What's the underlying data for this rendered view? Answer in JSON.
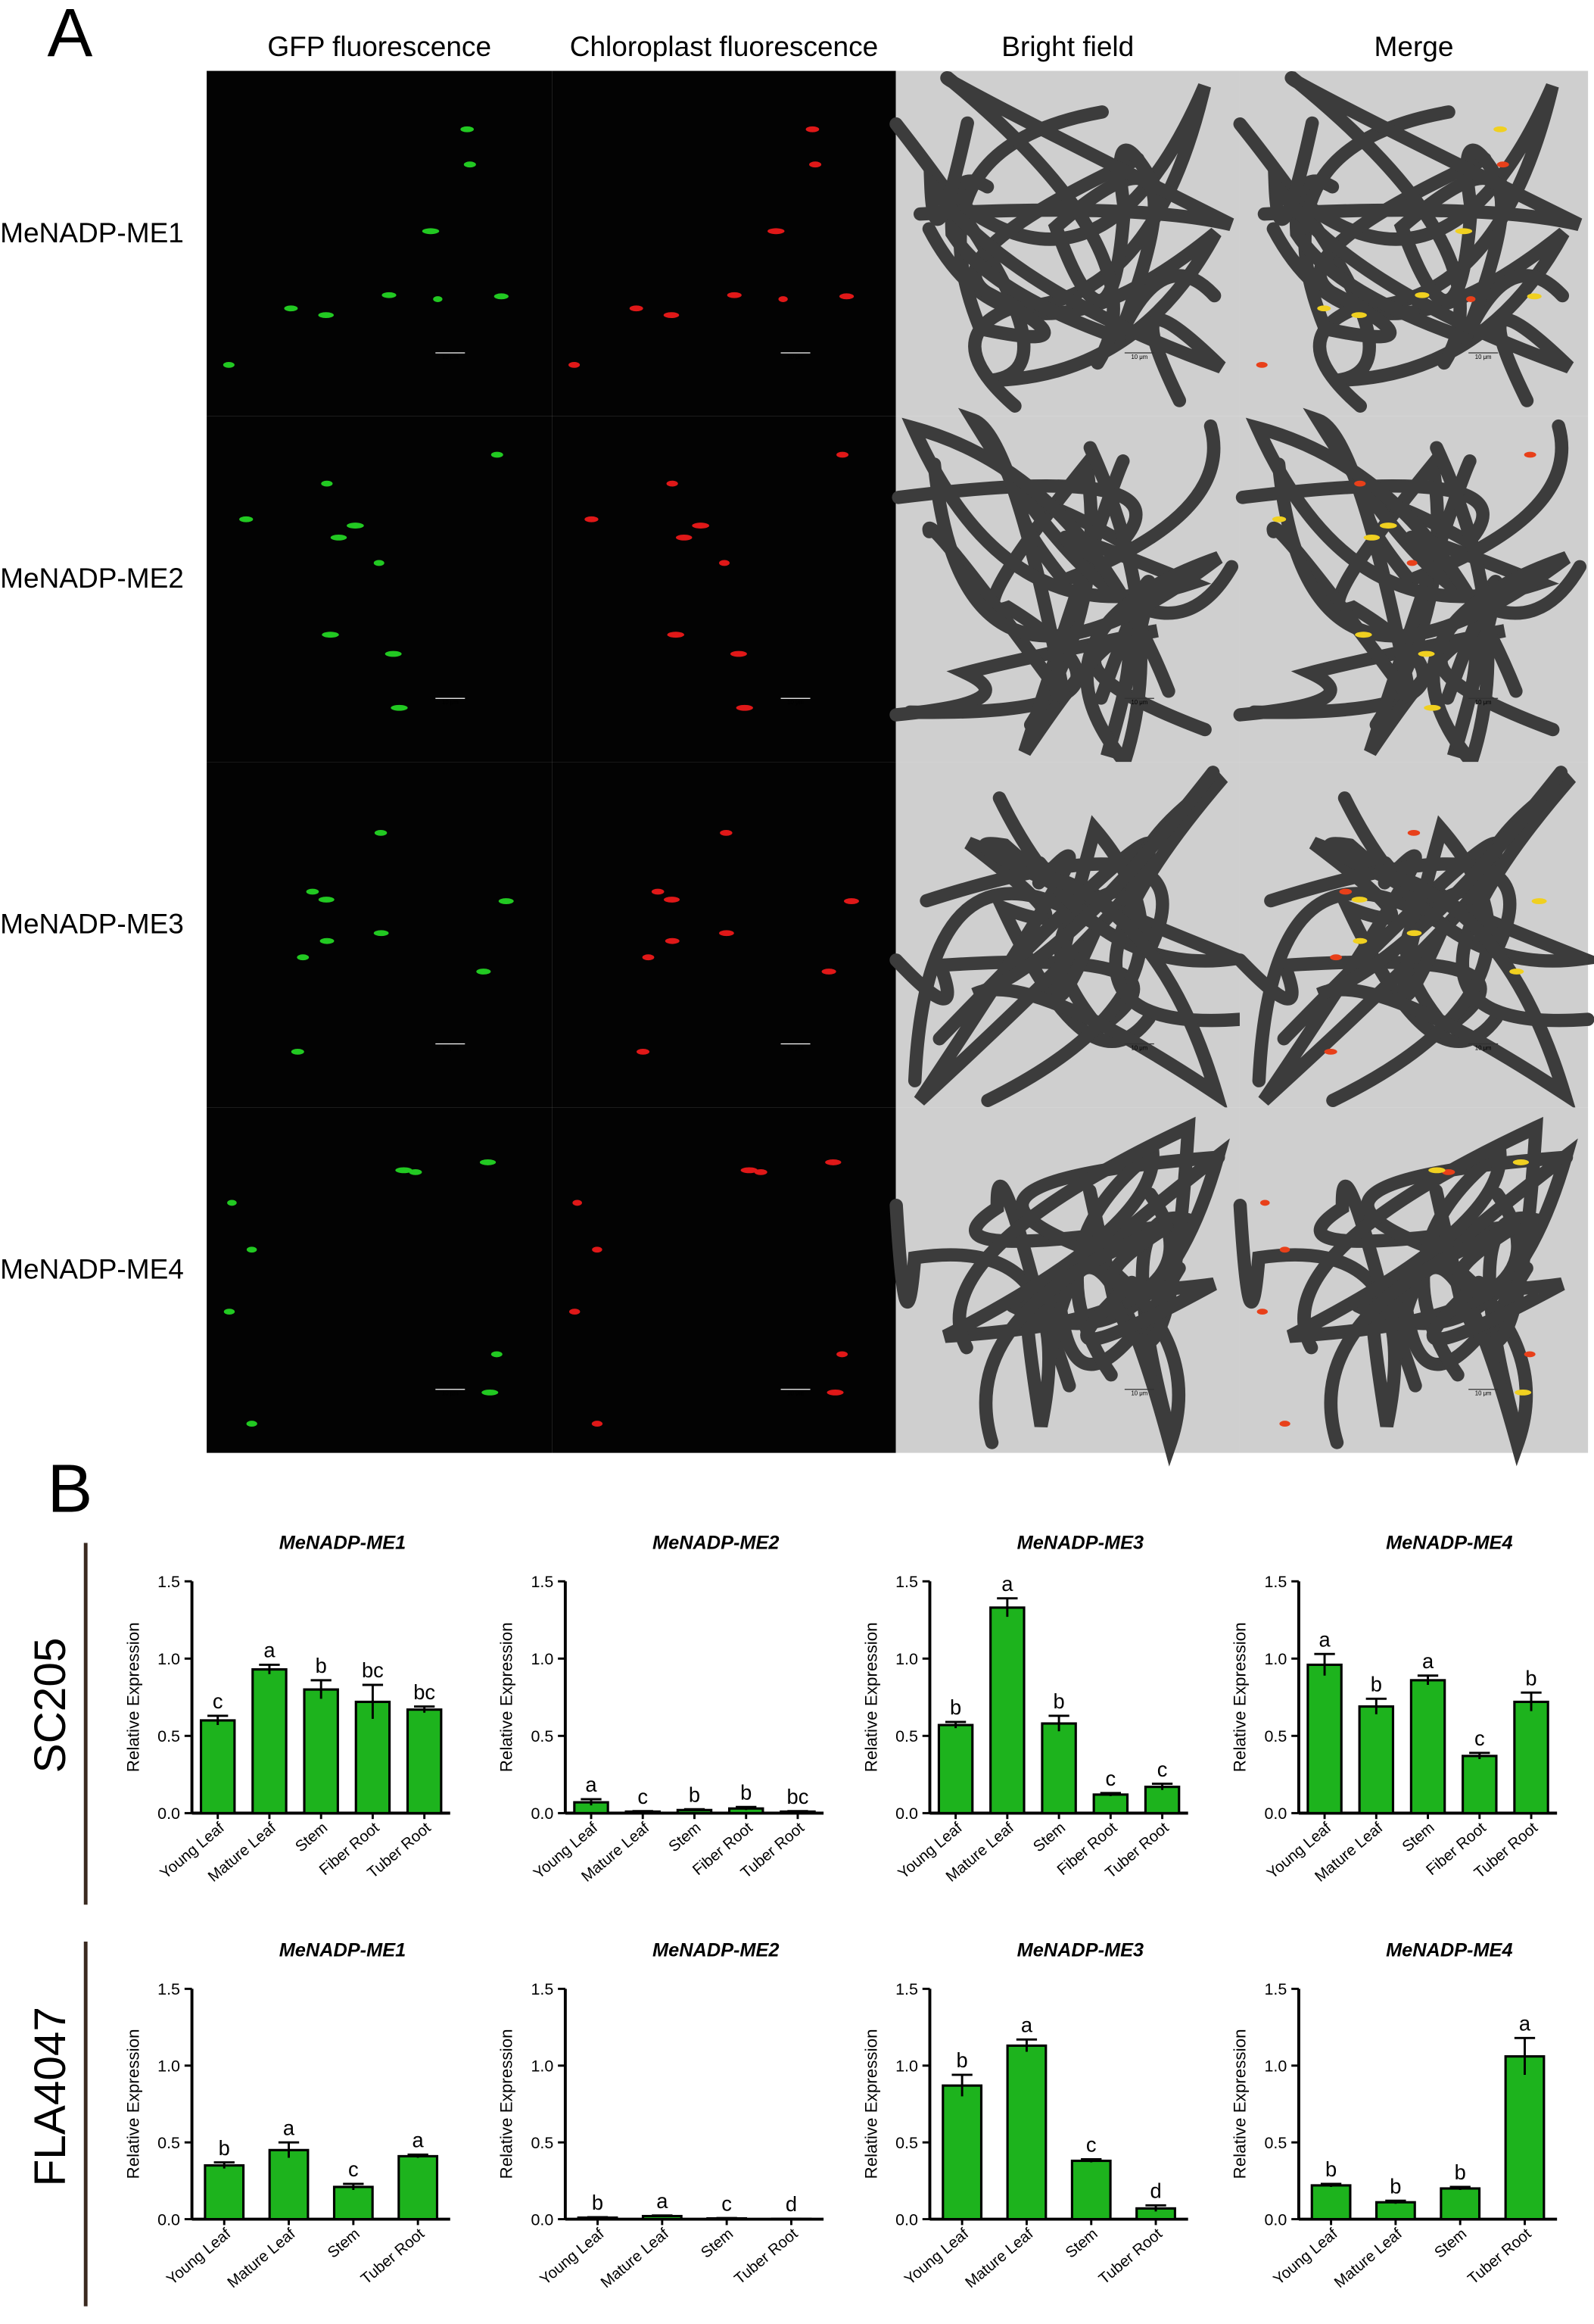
{
  "panel_a": {
    "label": "A",
    "columns": [
      "GFP fluorescence",
      "Chloroplast fluorescence",
      "Bright field",
      "Merge"
    ],
    "rows": [
      "MeNADP-ME1",
      "MeNADP-ME2",
      "MeNADP-ME3",
      "MeNADP-ME4"
    ],
    "scale_bar": "10 μm"
  },
  "panel_b": {
    "label": "B",
    "groups": [
      "SC205",
      "FLA4047"
    ]
  },
  "chart_data": [
    {
      "type": "bar",
      "title": "MeNADP-ME1",
      "ylabel": "Relative Expression",
      "categories": [
        "Young Leaf",
        "Mature Leaf",
        "Stem",
        "Fiber Root",
        "Tuber Root"
      ],
      "values": [
        0.6,
        0.93,
        0.8,
        0.72,
        0.67
      ],
      "errors": [
        0.03,
        0.03,
        0.06,
        0.11,
        0.02
      ],
      "letters": [
        "c",
        "a",
        "b",
        "bc",
        "bc"
      ],
      "color": "#1db31d",
      "ylim": [
        0,
        1.5
      ],
      "yticks": [
        {
          "value": 0,
          "label": "0.0"
        },
        0.5,
        {
          "value": 1,
          "label": "1.0"
        },
        1.5
      ]
    },
    {
      "type": "bar",
      "title": "MeNADP-ME2",
      "ylabel": "Relative Expression",
      "categories": [
        "Young Leaf",
        "Mature Leaf",
        "Stem",
        "Fiber Root",
        "Tuber Root"
      ],
      "values": [
        0.07,
        0.01,
        0.02,
        0.03,
        0.01
      ],
      "errors": [
        0.02,
        0.003,
        0.005,
        0.01,
        0.003
      ],
      "letters": [
        "a",
        "c",
        "b",
        "b",
        "bc"
      ],
      "color": "#1db31d",
      "ylim": [
        0,
        1.5
      ],
      "yticks": [
        {
          "value": 0,
          "label": "0.0"
        },
        0.5,
        {
          "value": 1,
          "label": "1.0"
        },
        1.5
      ]
    },
    {
      "type": "bar",
      "title": "MeNADP-ME3",
      "ylabel": "Relative Expression",
      "categories": [
        "Young Leaf",
        "Mature Leaf",
        "Stem",
        "Fiber Root",
        "Tuber Root"
      ],
      "values": [
        0.57,
        1.33,
        0.58,
        0.12,
        0.17
      ],
      "errors": [
        0.02,
        0.06,
        0.05,
        0.01,
        0.02
      ],
      "letters": [
        "b",
        "a",
        "b",
        "c",
        "c"
      ],
      "color": "#1db31d",
      "ylim": [
        0,
        1.5
      ],
      "yticks": [
        {
          "value": 0,
          "label": "0.0"
        },
        0.5,
        {
          "value": 1,
          "label": "1.0"
        },
        1.5
      ]
    },
    {
      "type": "bar",
      "title": "MeNADP-ME4",
      "ylabel": "Relative Expression",
      "categories": [
        "Young Leaf",
        "Mature Leaf",
        "Stem",
        "Fiber Root",
        "Tuber Root"
      ],
      "values": [
        0.96,
        0.69,
        0.86,
        0.37,
        0.72
      ],
      "errors": [
        0.07,
        0.05,
        0.03,
        0.02,
        0.06
      ],
      "letters": [
        "a",
        "b",
        "a",
        "c",
        "b"
      ],
      "color": "#1db31d",
      "ylim": [
        0,
        1.5
      ],
      "yticks": [
        {
          "value": 0,
          "label": "0.0"
        },
        0.5,
        {
          "value": 1,
          "label": "1.0"
        },
        1.5
      ]
    },
    {
      "type": "bar",
      "title": "MeNADP-ME1",
      "ylabel": "Relative Expression",
      "categories": [
        "Young Leaf",
        "Mature Leaf",
        "Stem",
        "Tuber Root"
      ],
      "values": [
        0.35,
        0.45,
        0.21,
        0.41
      ],
      "errors": [
        0.02,
        0.05,
        0.02,
        0.01
      ],
      "letters": [
        "b",
        "a",
        "c",
        "a"
      ],
      "color": "#1db31d",
      "ylim": [
        0,
        1.5
      ],
      "yticks": [
        {
          "value": 0,
          "label": "0.0"
        },
        0.5,
        {
          "value": 1,
          "label": "1.0"
        },
        1.5
      ]
    },
    {
      "type": "bar",
      "title": "MeNADP-ME2",
      "ylabel": "Relative Expression",
      "categories": [
        "Young Leaf",
        "Mature Leaf",
        "Stem",
        "Tuber Root"
      ],
      "values": [
        0.01,
        0.02,
        0.005,
        0.002
      ],
      "errors": [
        0.003,
        0.004,
        0.002,
        0.001
      ],
      "letters": [
        "b",
        "a",
        "c",
        "d"
      ],
      "color": "#1db31d",
      "ylim": [
        0,
        1.5
      ],
      "yticks": [
        {
          "value": 0,
          "label": "0.0"
        },
        0.5,
        {
          "value": 1,
          "label": "1.0"
        },
        1.5
      ]
    },
    {
      "type": "bar",
      "title": "MeNADP-ME3",
      "ylabel": "Relative Expression",
      "categories": [
        "Young Leaf",
        "Mature Leaf",
        "Stem",
        "Tuber Root"
      ],
      "values": [
        0.87,
        1.13,
        0.38,
        0.07
      ],
      "errors": [
        0.07,
        0.04,
        0.01,
        0.02
      ],
      "letters": [
        "b",
        "a",
        "c",
        "d"
      ],
      "color": "#1db31d",
      "ylim": [
        0,
        1.5
      ],
      "yticks": [
        {
          "value": 0,
          "label": "0.0"
        },
        0.5,
        {
          "value": 1,
          "label": "1.0"
        },
        1.5
      ]
    },
    {
      "type": "bar",
      "title": "MeNADP-ME4",
      "ylabel": "Relative Expression",
      "categories": [
        "Young Leaf",
        "Mature Leaf",
        "Stem",
        "Tuber Root"
      ],
      "values": [
        0.22,
        0.11,
        0.2,
        1.06
      ],
      "errors": [
        0.01,
        0.01,
        0.01,
        0.12
      ],
      "letters": [
        "b",
        "b",
        "b",
        "a"
      ],
      "color": "#1db31d",
      "ylim": [
        0,
        1.5
      ],
      "yticks": [
        {
          "value": 0,
          "label": "0.0"
        },
        0.5,
        {
          "value": 1,
          "label": "1.0"
        },
        1.5
      ]
    }
  ]
}
